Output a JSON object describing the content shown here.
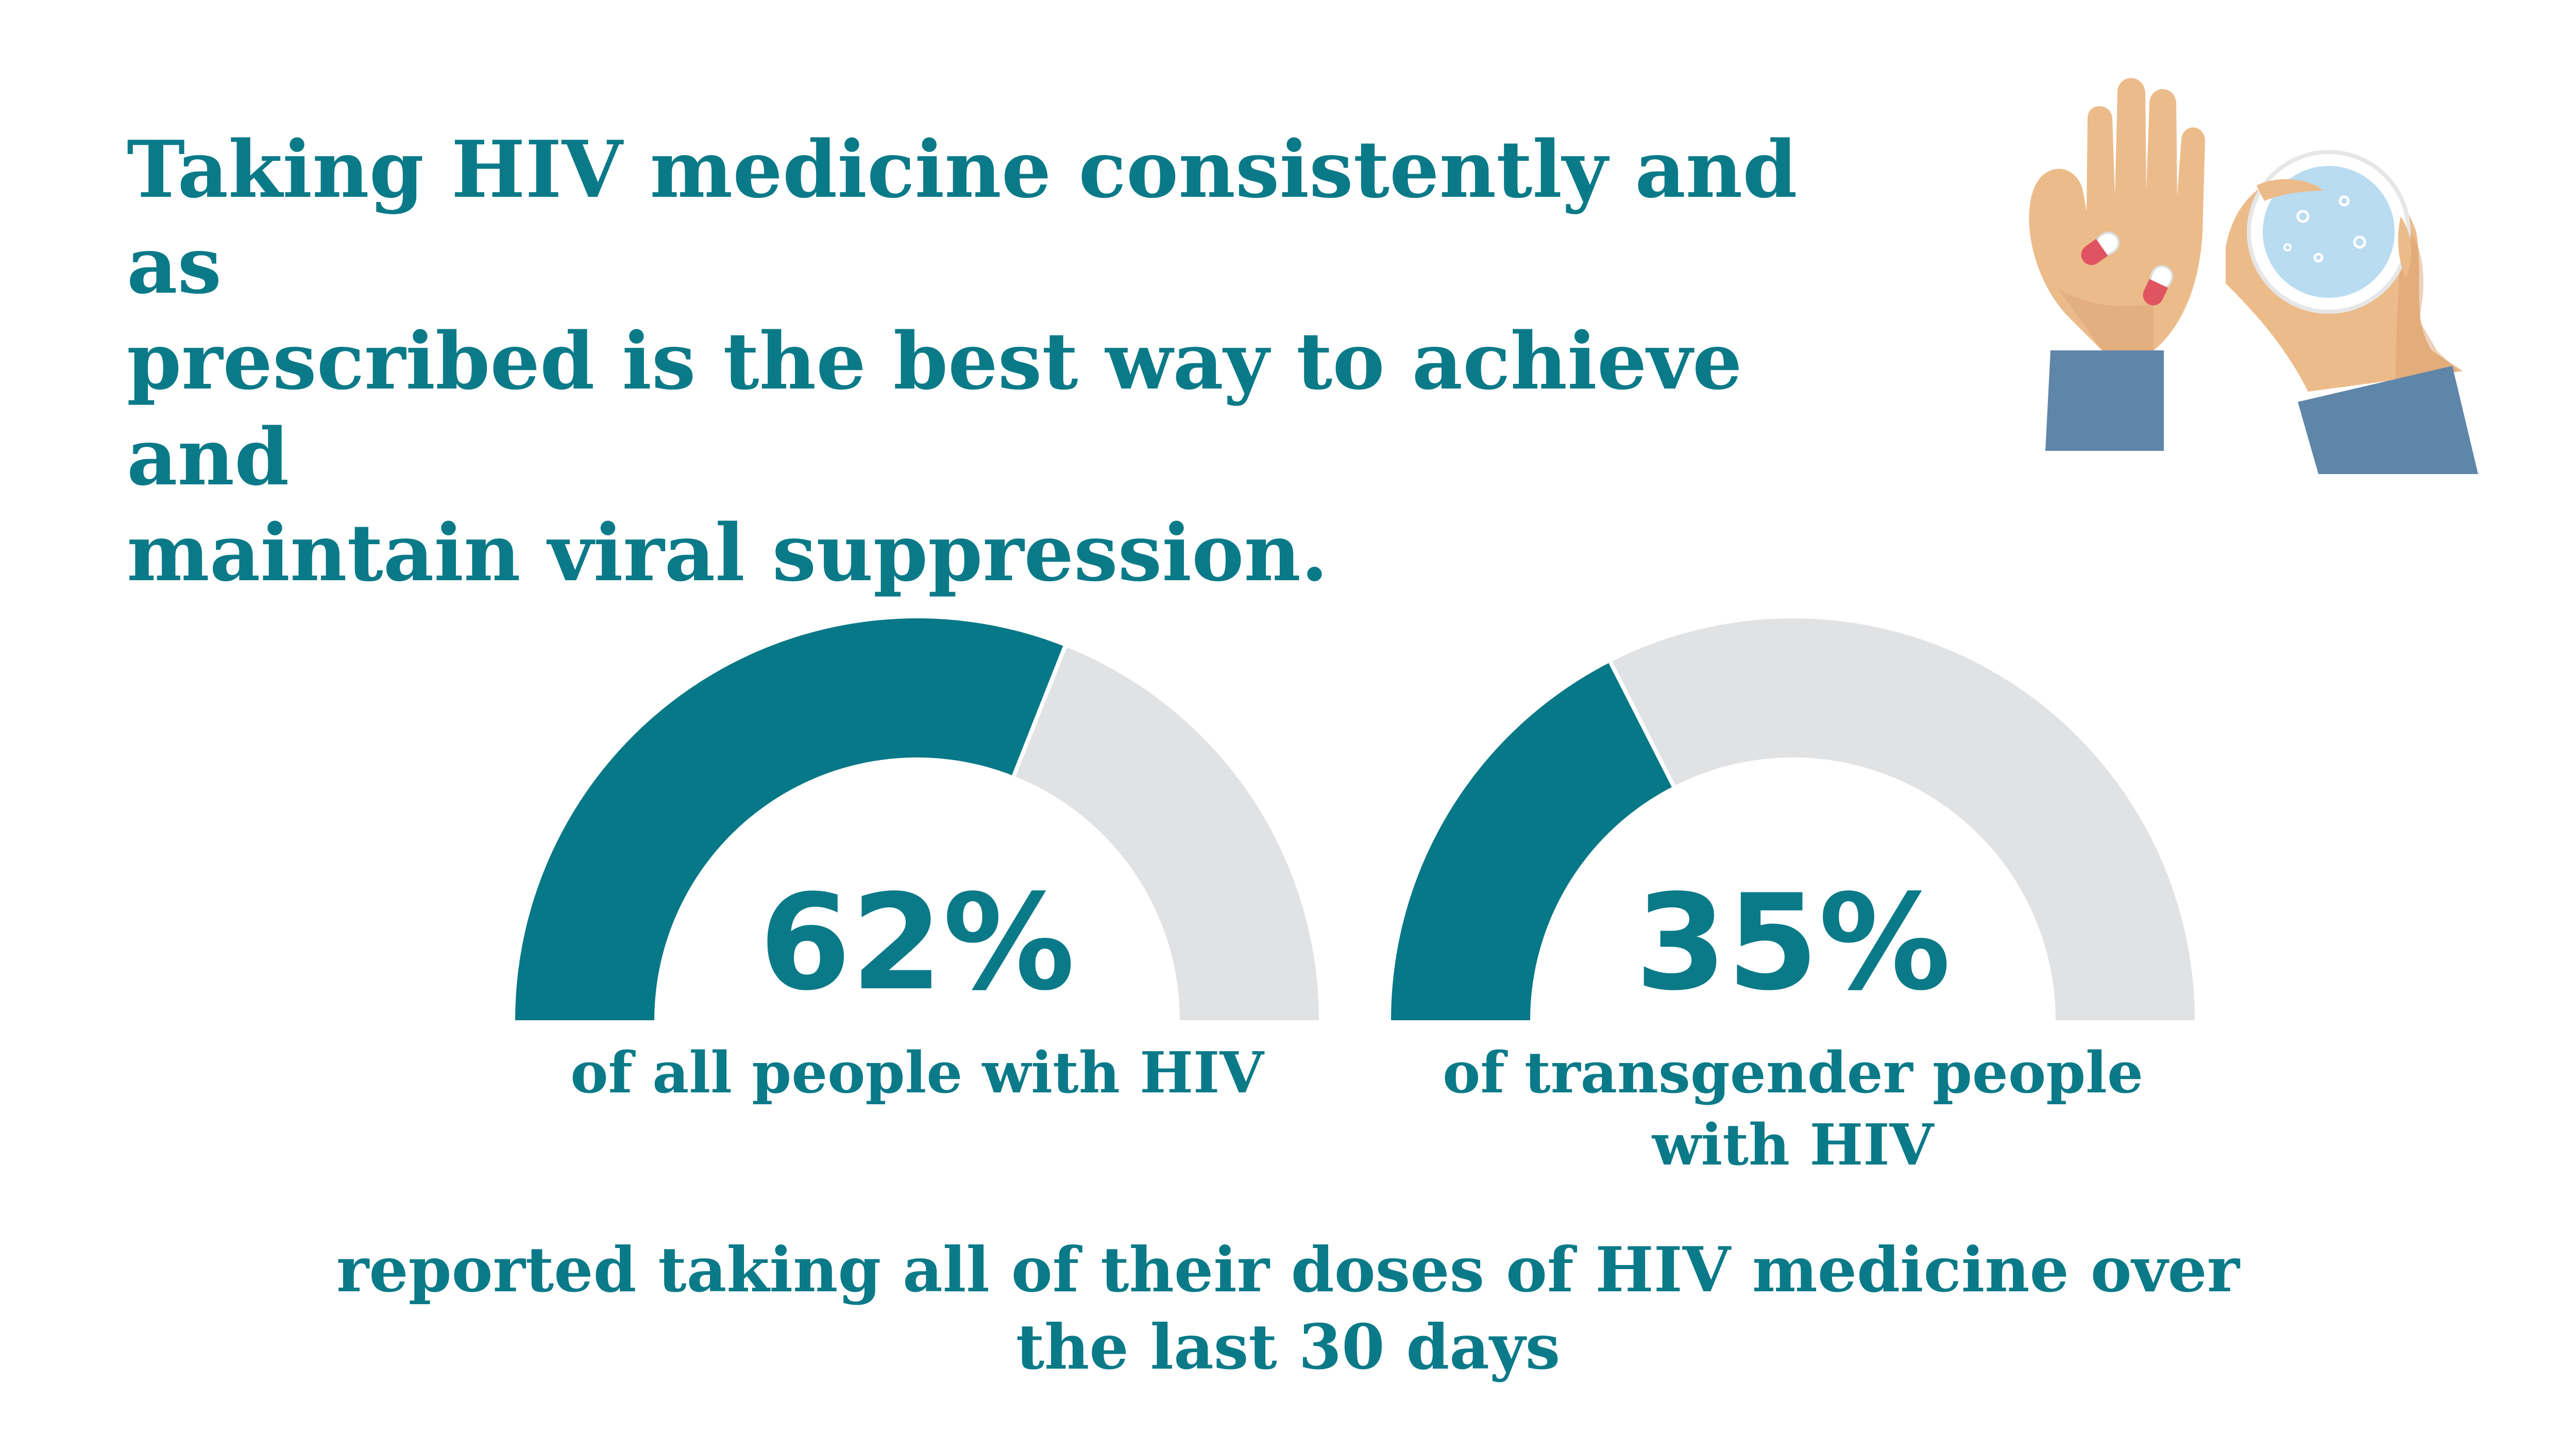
{
  "headline": {
    "lines": [
      "Taking HIV medicine consistently and as",
      "prescribed is the best way to achieve and",
      "maintain viral suppression."
    ]
  },
  "colors": {
    "accent": "#077887",
    "track": "#e1e2e4",
    "skin": "#ecbb8a",
    "skin_shadow": "#d69c68",
    "sleeve": "#5f86a9",
    "glass": "#b9dcf1",
    "pill_red": "#e05462"
  },
  "chart_data": [
    {
      "type": "gauge",
      "value": 62,
      "max": 100,
      "value_label": "62%",
      "caption": [
        "of all people with HIV"
      ]
    },
    {
      "type": "gauge",
      "value": 35,
      "max": 100,
      "value_label": "35%",
      "caption": [
        "of transgender people",
        "with HIV"
      ]
    }
  ],
  "footer": {
    "lines": [
      "reported taking all of their doses of HIV medicine over",
      "the last 30 days"
    ]
  },
  "illustration": {
    "icon": "hands-with-pills-and-water-glass-icon"
  }
}
